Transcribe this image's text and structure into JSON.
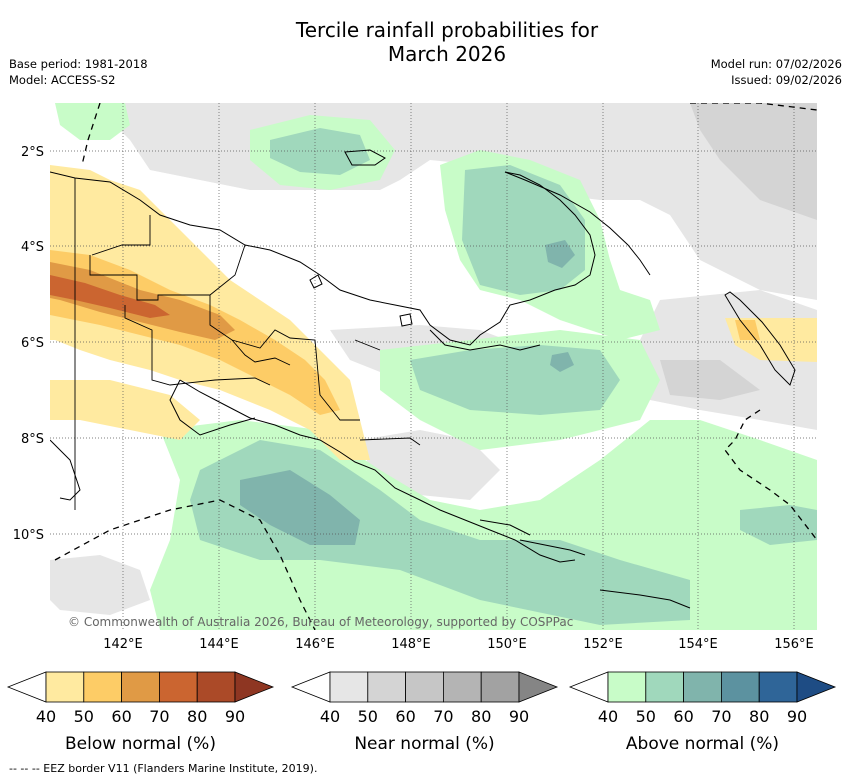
{
  "title_line1": "Tercile rainfall probabilities for",
  "title_line2": "March 2026",
  "meta": {
    "base_period": "Base period: 1981-2018",
    "model": "Model: ACCESS-S2",
    "model_run": "Model run: 07/02/2026",
    "issued": "Issued: 09/02/2026"
  },
  "map": {
    "lat_labels": [
      "2°S",
      "4°S",
      "6°S",
      "8°S",
      "10°S"
    ],
    "lon_labels": [
      "142°E",
      "144°E",
      "146°E",
      "148°E",
      "150°E",
      "152°E",
      "154°E",
      "156°E"
    ],
    "copyright": "© Commonwealth of Australia 2026, Bureau of Meteorology, supported by COSPPac"
  },
  "colorbars": [
    {
      "id": "below",
      "title": "Below normal (%)",
      "ticks": [
        "40",
        "50",
        "60",
        "70",
        "80",
        "90"
      ],
      "colors": [
        "#ffffff",
        "#ffeaa0",
        "#fdcc66",
        "#e09a45",
        "#cb6530",
        "#ab4a28",
        "#8e3622"
      ]
    },
    {
      "id": "near",
      "title": "Near normal (%)",
      "ticks": [
        "40",
        "50",
        "60",
        "70",
        "80",
        "90"
      ],
      "colors": [
        "#ffffff",
        "#e6e6e6",
        "#d4d4d4",
        "#c6c6c6",
        "#b4b4b4",
        "#a2a2a2",
        "#858585"
      ]
    },
    {
      "id": "above",
      "title": "Above normal (%)",
      "ticks": [
        "40",
        "50",
        "60",
        "70",
        "80",
        "90"
      ],
      "colors": [
        "#ffffff",
        "#c8fcc8",
        "#a0d8bc",
        "#80b4ac",
        "#5c92a0",
        "#2f6598",
        "#1e4c84"
      ]
    }
  ],
  "footnote": "-- -- -- EEZ border V11 (Flanders Marine Institute, 2019)."
}
